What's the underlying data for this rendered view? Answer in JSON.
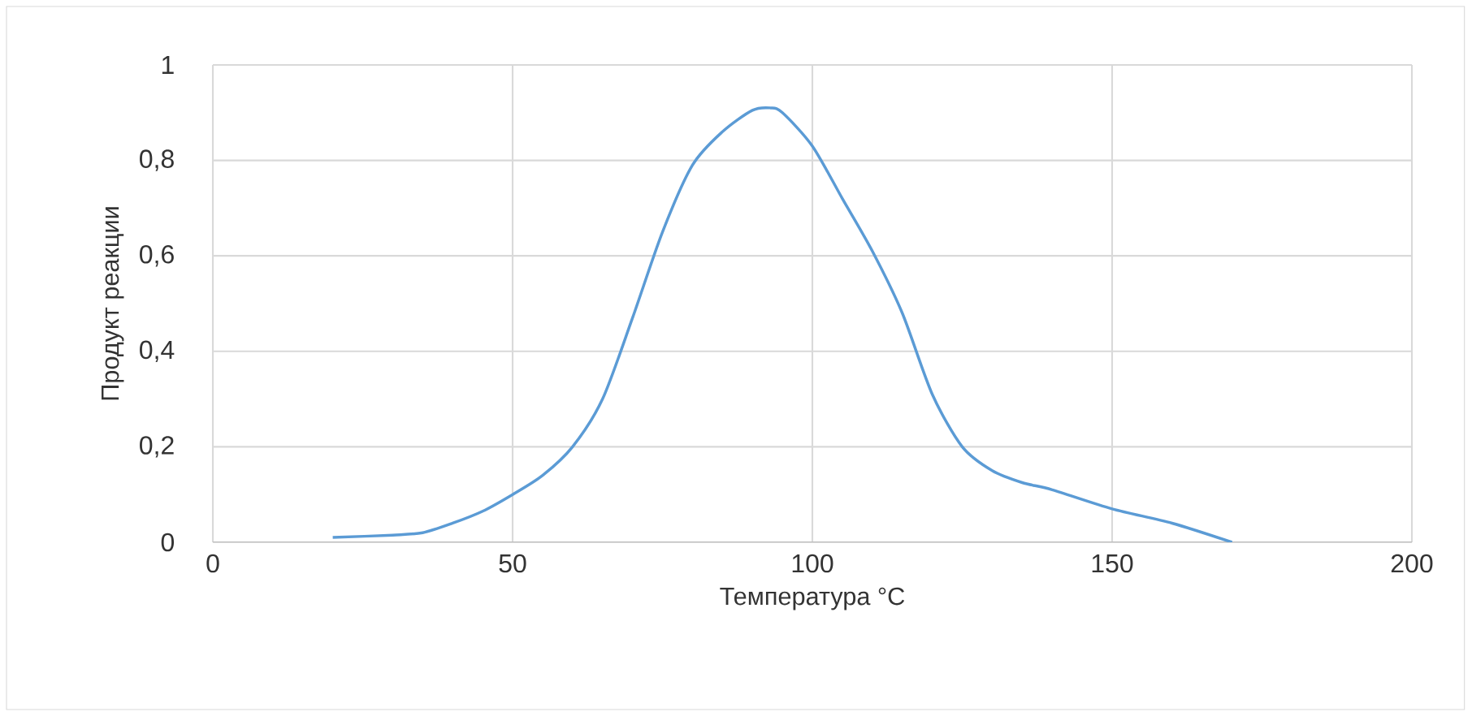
{
  "chart_data": {
    "type": "line",
    "xlabel": "Температура °C",
    "ylabel": "Продукт реакции",
    "x": [
      20,
      30,
      35,
      40,
      45,
      50,
      55,
      60,
      65,
      70,
      75,
      80,
      85,
      90,
      93,
      95,
      100,
      105,
      110,
      115,
      120,
      125,
      130,
      135,
      140,
      150,
      160,
      170
    ],
    "series": [
      {
        "color": "#5b9bd5",
        "values": [
          0.01,
          0.015,
          0.02,
          0.04,
          0.065,
          0.1,
          0.14,
          0.2,
          0.3,
          0.47,
          0.65,
          0.79,
          0.86,
          0.905,
          0.91,
          0.9,
          0.83,
          0.72,
          0.61,
          0.48,
          0.31,
          0.2,
          0.15,
          0.125,
          0.11,
          0.07,
          0.04,
          0.0
        ]
      }
    ],
    "xlim": [
      0,
      200
    ],
    "xticks": [
      0,
      50,
      100,
      150,
      200
    ],
    "ylim": [
      0,
      1
    ],
    "yticks": [
      0,
      {
        "value": 0.2,
        "label": "0,2"
      },
      {
        "value": 0.4,
        "label": "0,4"
      },
      {
        "value": 0.6,
        "label": "0,6"
      },
      {
        "value": 0.8,
        "label": "0,8"
      },
      1
    ],
    "grid": true,
    "marker": "none",
    "line_style": "solid"
  }
}
